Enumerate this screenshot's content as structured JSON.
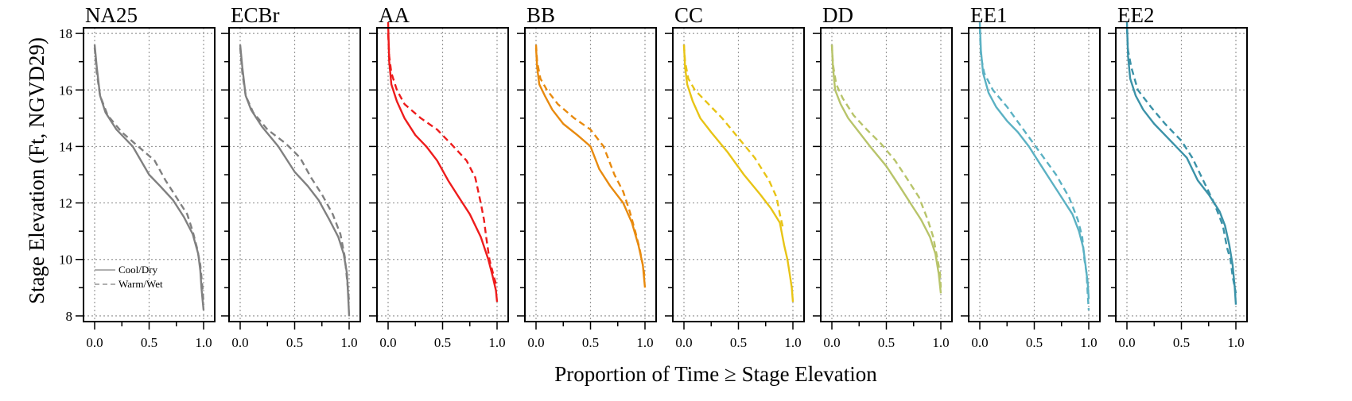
{
  "figure": {
    "ylabel": "Stage Elevation (Ft, NGVD29)",
    "xlabel": "Proportion of Time ≥ Stage Elevation",
    "legend": {
      "placement": "bottom-left of first panel",
      "entries": [
        {
          "label": "Cool/Dry",
          "style": "solid"
        },
        {
          "label": "Warm/Wet",
          "style": "dashed"
        }
      ]
    }
  },
  "chart_data": {
    "type": "line",
    "xlim": [
      0,
      1
    ],
    "ylim": [
      7.8,
      18.2
    ],
    "x_ticks": [
      0.0,
      0.5,
      1.0
    ],
    "x_tick_labels": [
      "0.0",
      "0.5",
      "1.0"
    ],
    "y_ticks": [
      8,
      10,
      12,
      14,
      16,
      18
    ],
    "y_tick_labels": [
      "8",
      "10",
      "12",
      "14",
      "16",
      "18"
    ],
    "grid": true,
    "panels": [
      {
        "title": "NA25",
        "color": "#808080",
        "series": [
          {
            "name": "Cool/Dry",
            "style": "solid",
            "x": [
              0.0,
              0.02,
              0.05,
              0.1,
              0.2,
              0.35,
              0.5,
              0.6,
              0.72,
              0.82,
              0.9,
              0.95,
              0.97,
              0.98,
              0.99,
              1.0
            ],
            "y": [
              17.6,
              16.8,
              15.8,
              15.2,
              14.6,
              14.0,
              13.0,
              12.6,
              12.1,
              11.5,
              10.9,
              10.2,
              9.6,
              9.0,
              8.6,
              8.2
            ]
          },
          {
            "name": "Warm/Wet",
            "style": "dashed",
            "x": [
              0.0,
              0.02,
              0.05,
              0.12,
              0.25,
              0.4,
              0.55,
              0.65,
              0.75,
              0.85,
              0.9,
              0.94,
              0.97,
              0.99,
              1.0
            ],
            "y": [
              17.5,
              16.6,
              15.8,
              15.1,
              14.5,
              14.0,
              13.5,
              12.8,
              12.2,
              11.6,
              11.0,
              10.4,
              9.8,
              9.0,
              8.4
            ]
          }
        ]
      },
      {
        "title": "ECBr",
        "color": "#808080",
        "series": [
          {
            "name": "Cool/Dry",
            "style": "solid",
            "x": [
              0.0,
              0.02,
              0.05,
              0.1,
              0.2,
              0.35,
              0.5,
              0.62,
              0.72,
              0.82,
              0.9,
              0.95,
              0.98,
              0.99,
              1.0
            ],
            "y": [
              17.6,
              16.8,
              15.8,
              15.3,
              14.7,
              14.0,
              13.1,
              12.6,
              12.1,
              11.4,
              10.8,
              10.2,
              9.5,
              8.8,
              8.0
            ]
          },
          {
            "name": "Warm/Wet",
            "style": "dashed",
            "x": [
              0.0,
              0.02,
              0.05,
              0.12,
              0.25,
              0.42,
              0.55,
              0.65,
              0.75,
              0.85,
              0.92,
              0.96,
              0.98,
              1.0
            ],
            "y": [
              17.5,
              16.6,
              15.8,
              15.2,
              14.6,
              14.1,
              13.6,
              12.9,
              12.3,
              11.6,
              10.9,
              10.1,
              9.3,
              8.5
            ]
          }
        ]
      },
      {
        "title": "AA",
        "color": "#ee1c1c",
        "series": [
          {
            "name": "Cool/Dry",
            "style": "solid",
            "x": [
              0.0,
              0.01,
              0.03,
              0.08,
              0.15,
              0.25,
              0.35,
              0.45,
              0.55,
              0.65,
              0.75,
              0.85,
              0.92,
              0.96,
              0.99,
              1.0
            ],
            "y": [
              18.4,
              17.0,
              16.2,
              15.6,
              15.0,
              14.4,
              14.0,
              13.5,
              12.8,
              12.2,
              11.6,
              10.8,
              10.0,
              9.4,
              8.9,
              8.5
            ]
          },
          {
            "name": "Warm/Wet",
            "style": "dashed",
            "x": [
              0.0,
              0.01,
              0.03,
              0.08,
              0.15,
              0.3,
              0.45,
              0.6,
              0.72,
              0.8,
              0.85,
              0.88,
              0.9,
              0.93,
              0.97,
              1.0
            ],
            "y": [
              18.0,
              17.2,
              16.6,
              16.0,
              15.5,
              15.0,
              14.6,
              14.0,
              13.5,
              12.9,
              12.0,
              11.4,
              10.8,
              10.0,
              9.4,
              9.0
            ]
          }
        ]
      },
      {
        "title": "BB",
        "color": "#e88a0e",
        "series": [
          {
            "name": "Cool/Dry",
            "style": "solid",
            "x": [
              0.0,
              0.01,
              0.03,
              0.08,
              0.15,
              0.25,
              0.38,
              0.5,
              0.58,
              0.68,
              0.8,
              0.88,
              0.94,
              0.98,
              1.0
            ],
            "y": [
              17.5,
              16.8,
              16.2,
              15.8,
              15.3,
              14.8,
              14.4,
              14.0,
              13.2,
              12.6,
              12.0,
              11.3,
              10.5,
              9.8,
              9.0
            ]
          },
          {
            "name": "Warm/Wet",
            "style": "dashed",
            "x": [
              0.0,
              0.01,
              0.04,
              0.1,
              0.2,
              0.35,
              0.5,
              0.62,
              0.72,
              0.8,
              0.86,
              0.91,
              0.95,
              0.98,
              1.0
            ],
            "y": [
              17.6,
              17.0,
              16.4,
              16.0,
              15.5,
              15.0,
              14.6,
              14.0,
              13.0,
              12.4,
              11.7,
              11.0,
              10.4,
              9.8,
              9.3
            ]
          }
        ]
      },
      {
        "title": "CC",
        "color": "#e8c416",
        "series": [
          {
            "name": "Cool/Dry",
            "style": "solid",
            "x": [
              0.0,
              0.01,
              0.03,
              0.08,
              0.15,
              0.25,
              0.4,
              0.55,
              0.7,
              0.8,
              0.88,
              0.92,
              0.95,
              0.97,
              0.99,
              1.0
            ],
            "y": [
              17.6,
              16.8,
              16.2,
              15.6,
              15.0,
              14.5,
              13.8,
              13.0,
              12.3,
              11.8,
              11.3,
              10.5,
              10.0,
              9.5,
              9.0,
              8.5
            ]
          },
          {
            "name": "Warm/Wet",
            "style": "dashed",
            "x": [
              0.0,
              0.01,
              0.04,
              0.1,
              0.2,
              0.35,
              0.5,
              0.65,
              0.78,
              0.85,
              0.88,
              0.91
            ],
            "y": [
              17.6,
              17.0,
              16.4,
              16.0,
              15.6,
              15.0,
              14.3,
              13.6,
              12.8,
              12.2,
              11.6,
              11.1
            ]
          }
        ]
      },
      {
        "title": "DD",
        "color": "#b8c46a",
        "series": [
          {
            "name": "Cool/Dry",
            "style": "solid",
            "x": [
              0.0,
              0.01,
              0.03,
              0.08,
              0.15,
              0.25,
              0.35,
              0.5,
              0.62,
              0.72,
              0.82,
              0.9,
              0.95,
              0.98,
              1.0
            ],
            "y": [
              17.6,
              16.8,
              16.0,
              15.5,
              15.0,
              14.5,
              14.0,
              13.3,
              12.6,
              12.0,
              11.4,
              10.8,
              10.2,
              9.5,
              8.8
            ]
          },
          {
            "name": "Warm/Wet",
            "style": "dashed",
            "x": [
              0.0,
              0.01,
              0.04,
              0.1,
              0.2,
              0.32,
              0.45,
              0.58,
              0.7,
              0.8,
              0.88,
              0.93,
              0.96,
              0.99,
              1.0
            ],
            "y": [
              17.6,
              16.9,
              16.2,
              15.7,
              15.1,
              14.6,
              14.1,
              13.5,
              12.8,
              12.2,
              11.4,
              10.8,
              10.2,
              9.6,
              9.0
            ]
          }
        ]
      },
      {
        "title": "EE1",
        "color": "#5bb1c3",
        "series": [
          {
            "name": "Cool/Dry",
            "style": "solid",
            "x": [
              0.0,
              0.01,
              0.03,
              0.08,
              0.15,
              0.25,
              0.35,
              0.45,
              0.55,
              0.65,
              0.75,
              0.85,
              0.91,
              0.95,
              0.97,
              0.99,
              1.0
            ],
            "y": [
              18.4,
              17.4,
              16.6,
              15.9,
              15.4,
              14.9,
              14.5,
              14.0,
              13.4,
              12.8,
              12.2,
              11.6,
              11.0,
              10.4,
              9.8,
              9.2,
              8.6
            ]
          },
          {
            "name": "Warm/Wet",
            "style": "dashed",
            "x": [
              0.0,
              0.01,
              0.04,
              0.12,
              0.25,
              0.4,
              0.55,
              0.7,
              0.82,
              0.9,
              0.94,
              0.96,
              0.98,
              0.99,
              1.0
            ],
            "y": [
              18.2,
              17.2,
              16.6,
              16.0,
              15.4,
              14.6,
              13.8,
              13.0,
              12.2,
              11.4,
              10.8,
              10.0,
              9.5,
              8.8,
              8.2
            ]
          }
        ]
      },
      {
        "title": "EE2",
        "color": "#3b92a8",
        "series": [
          {
            "name": "Cool/Dry",
            "style": "solid",
            "x": [
              0.0,
              0.01,
              0.03,
              0.08,
              0.15,
              0.25,
              0.35,
              0.45,
              0.55,
              0.65,
              0.75,
              0.85,
              0.9,
              0.94,
              0.97,
              0.99,
              1.0
            ],
            "y": [
              18.4,
              17.2,
              16.4,
              15.8,
              15.3,
              14.8,
              14.4,
              14.0,
              13.6,
              12.8,
              12.3,
              11.7,
              11.2,
              10.5,
              9.8,
              9.0,
              8.4
            ]
          },
          {
            "name": "Warm/Wet",
            "style": "dashed",
            "x": [
              0.0,
              0.01,
              0.04,
              0.1,
              0.22,
              0.35,
              0.5,
              0.6,
              0.7,
              0.8,
              0.88,
              0.92,
              0.95,
              0.97,
              1.0
            ],
            "y": [
              18.2,
              17.4,
              16.8,
              16.0,
              15.4,
              14.8,
              14.2,
              13.6,
              12.8,
              12.0,
              11.2,
              10.4,
              10.0,
              9.4,
              8.8
            ]
          }
        ]
      }
    ]
  }
}
